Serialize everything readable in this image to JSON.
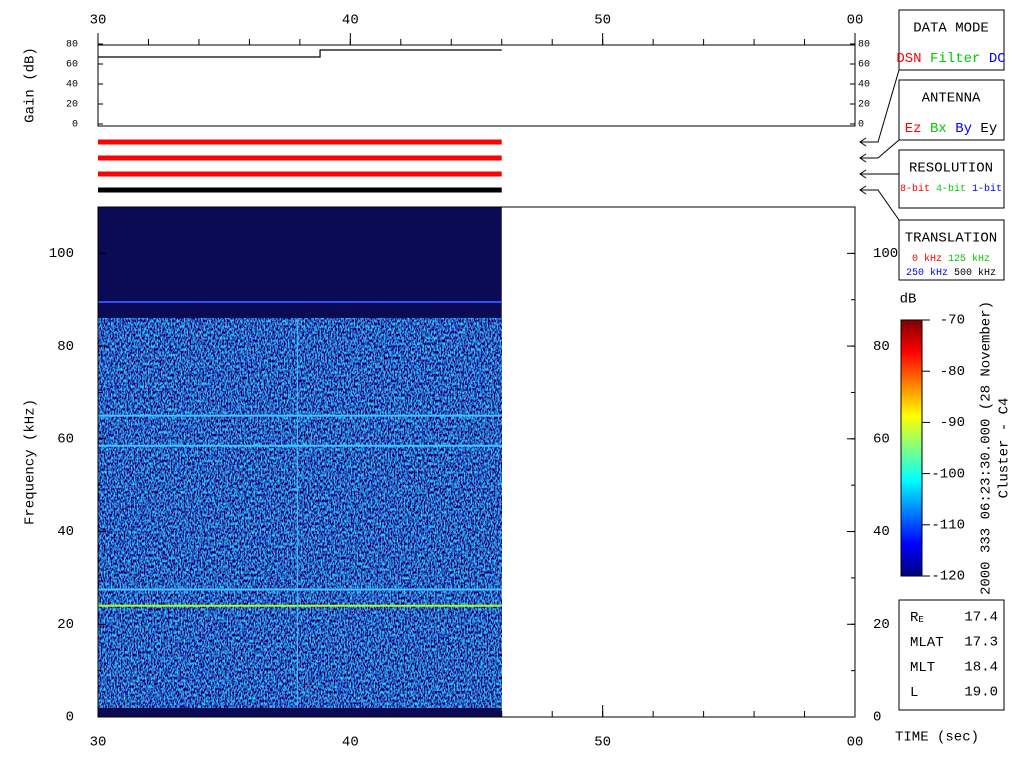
{
  "chart_data": [
    {
      "type": "line",
      "ylabel": "Gain (dB)",
      "xlim": [
        30,
        60
      ],
      "xticks": [
        30,
        40,
        50,
        {
          "value": 60,
          "label": "00"
        }
      ],
      "xminor_step": 2,
      "ylim": [
        0,
        80
      ],
      "yticks": [
        0,
        20,
        40,
        60,
        80
      ],
      "series": [
        {
          "color": "#000000",
          "x": [
            30,
            38.8,
            38.8,
            46
          ],
          "values": [
            67,
            67,
            74,
            74
          ]
        }
      ]
    },
    {
      "type": "status",
      "xlim": [
        30,
        60
      ],
      "bars": [
        {
          "color": "#ff0000",
          "x": [
            30,
            46
          ]
        },
        {
          "color": "#ff0000",
          "x": [
            30,
            46
          ]
        },
        {
          "color": "#ff0000",
          "x": [
            30,
            46
          ]
        },
        {
          "color": "#000000",
          "x": [
            30,
            46
          ]
        }
      ]
    },
    {
      "type": "spectrogram",
      "xlabel": "TIME (sec)",
      "ylabel": "Frequency (kHz)",
      "xlim": [
        30,
        60
      ],
      "xticks": [
        30,
        40,
        50,
        {
          "value": 60,
          "label": "00"
        }
      ],
      "xminor_step": 2,
      "ylim": [
        0,
        110
      ],
      "yticks": [
        0,
        20,
        40,
        60,
        80,
        100
      ],
      "yminor_step": 10,
      "x": [
        30,
        46
      ],
      "background": "#0a0a55",
      "noise_band": [
        2,
        86
      ],
      "lines": [
        {
          "axis": "y",
          "value": 89.5,
          "color": "#2a50ff"
        },
        {
          "axis": "y",
          "value": 65,
          "color": "#40c8ff"
        },
        {
          "axis": "y",
          "value": 58.5,
          "color": "#40c8ff"
        },
        {
          "axis": "y",
          "value": 27.5,
          "color": "#40c8ff"
        },
        {
          "axis": "y",
          "value": 24,
          "color": "#a8ff20"
        },
        {
          "axis": "x",
          "value": 37.9,
          "color": "#40c8ff"
        }
      ],
      "colorbar": {
        "label": "dB",
        "ylim": [
          -120,
          -70
        ],
        "yticks": [
          -120,
          -110,
          -100,
          -90,
          -80,
          -70
        ],
        "colors": [
          "#00007f",
          "#0000ff",
          "#0080ff",
          "#00ffff",
          "#80ff80",
          "#ffff00",
          "#ff8000",
          "#ff0000",
          "#7f0000"
        ]
      }
    }
  ],
  "info": {
    "timestamp": "2000 333 06:23:30.000 (28 November)",
    "spacecraft": "Cluster - C4"
  },
  "legend_boxes": [
    {
      "title": "DATA MODE",
      "rows": [
        [
          {
            "label": "DSN",
            "color": "#ff0000"
          },
          {
            "label": "Filter",
            "color": "#00cc00"
          },
          {
            "label": "DC",
            "color": "#0000ff"
          }
        ]
      ]
    },
    {
      "title": "ANTENNA",
      "rows": [
        [
          {
            "label": "Ez",
            "color": "#ff0000"
          },
          {
            "label": "Bx",
            "color": "#00cc00"
          },
          {
            "label": "By",
            "color": "#0000ff"
          },
          {
            "label": "Ey",
            "color": "#000000"
          }
        ]
      ]
    },
    {
      "title": "RESOLUTION",
      "rows": [
        [
          {
            "label": "8-bit",
            "color": "#ff0000"
          },
          {
            "label": "4-bit",
            "color": "#00cc00"
          },
          {
            "label": "1-bit",
            "color": "#0000ff"
          }
        ]
      ]
    },
    {
      "title": "TRANSLATION",
      "rows": [
        [
          {
            "label": "0 kHz",
            "color": "#ff0000"
          },
          {
            "label": "125 kHz",
            "color": "#00cc00"
          }
        ],
        [
          {
            "label": "250 kHz",
            "color": "#0000ff"
          },
          {
            "label": "500 kHz",
            "color": "#000000"
          }
        ]
      ]
    }
  ],
  "ephemeris": [
    {
      "label": "R",
      "sub": "E",
      "value": "17.4"
    },
    {
      "label": "MLAT",
      "value": "17.3"
    },
    {
      "label": "MLT",
      "value": "18.4"
    },
    {
      "label": "L",
      "value": "19.0"
    }
  ]
}
